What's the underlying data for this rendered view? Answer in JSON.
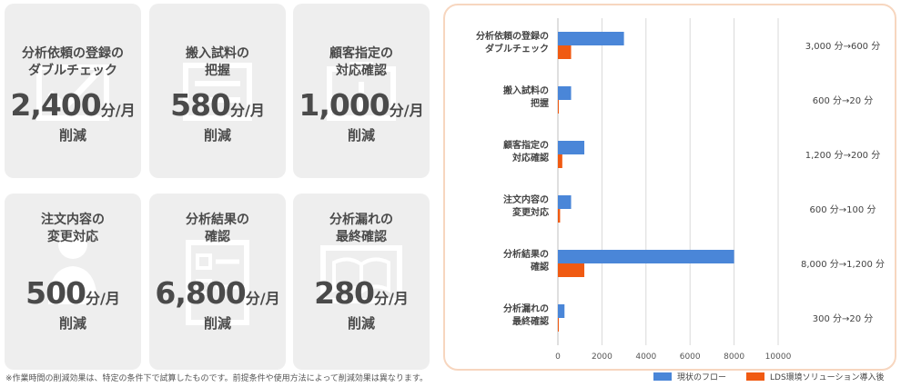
{
  "cards": [
    {
      "title": "分析依頼の登録の\nダブルチェック",
      "value": "2,400",
      "unit": "分/月",
      "sub": "削減",
      "icon": "checkbox-icon"
    },
    {
      "title": "搬入試料の\n把握",
      "value": "580",
      "unit": "分/月",
      "sub": "削減",
      "icon": "document-icon"
    },
    {
      "title": "顧客指定の\n対応確認",
      "value": "1,000",
      "unit": "分/月",
      "sub": "削減",
      "icon": "clipboard-icon"
    },
    {
      "title": "注文内容の\n変更対応",
      "value": "500",
      "unit": "分/月",
      "sub": "削減",
      "icon": "person-icon"
    },
    {
      "title": "分析結果の\n確認",
      "value": "6,800",
      "unit": "分/月",
      "sub": "削減",
      "icon": "checklist-icon"
    },
    {
      "title": "分析漏れの\n最終確認",
      "value": "280",
      "unit": "分/月",
      "sub": "削減",
      "icon": "book-icon"
    }
  ],
  "footnote": "※作業時間の削減効果は、特定の条件下で試算したものです。前提条件や使用方法によって削減効果は異なります。",
  "chart_data": {
    "type": "bar",
    "orientation": "horizontal",
    "categories": [
      "分析依頼の登録の\nダブルチェック",
      "搬入試料の\n把握",
      "顧客指定の\n対応確認",
      "注文内容の\n変更対応",
      "分析結果の\n確認",
      "分析漏れの\n最終確認"
    ],
    "series": [
      {
        "name": "現状のフロー",
        "color": "#4a86d8",
        "values": [
          3000,
          600,
          1200,
          600,
          8000,
          300
        ]
      },
      {
        "name": "LDS環境ソリューション導入後",
        "color": "#f05a12",
        "values": [
          600,
          20,
          200,
          100,
          1200,
          20
        ]
      }
    ],
    "annotations": [
      "3,000 分→600 分",
      "600 分→20 分",
      "1,200 分→200 分",
      "600 分→100 分",
      "8,000 分→1,200 分",
      "300 分→20 分"
    ],
    "xticks": [
      0,
      2000,
      4000,
      6000,
      8000,
      10000
    ],
    "xlim": [
      0,
      10000
    ],
    "grid": true,
    "legend_position": "bottom"
  }
}
